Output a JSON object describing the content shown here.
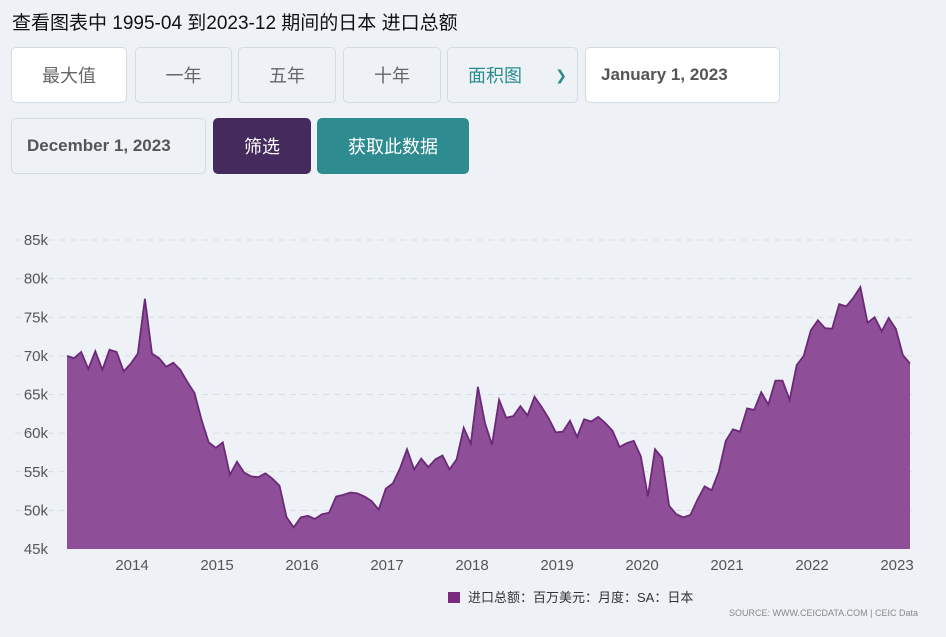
{
  "title": "查看图表中 1995-04 到2023-12 期间的日本 进口总额",
  "controls": {
    "max": "最大值",
    "one_year": "一年",
    "five_year": "五年",
    "ten_year": "十年",
    "chart_type": "面积图",
    "start_date": "January 1, 2023",
    "end_date": "December 1, 2023",
    "filter": "筛选",
    "get_data": "获取此数据"
  },
  "legend": "进口总额：百万美元：月度：SA：日本",
  "source": "SOURCE: WWW.CEICDATA.COM | CEIC Data",
  "colors": {
    "area": "#8e4e98",
    "line": "#6a2a78",
    "legend": "#7b2a82"
  },
  "chart_data": {
    "type": "area",
    "ylim": [
      45,
      85
    ],
    "y_ticks": [
      "45k",
      "50k",
      "55k",
      "60k",
      "65k",
      "70k",
      "75k",
      "80k",
      "85k"
    ],
    "y_tick_values": [
      45,
      50,
      55,
      60,
      65,
      70,
      75,
      80,
      85
    ],
    "x_ticks": [
      "2014",
      "2015",
      "2016",
      "2017",
      "2018",
      "2019",
      "2020",
      "2021",
      "2022",
      "2023"
    ],
    "x_tick_values": [
      2014,
      2015,
      2016,
      2017,
      2018,
      2019,
      2020,
      2021,
      2022,
      2023
    ],
    "x_start": 2013.25,
    "x_step_months": 1,
    "series": [
      {
        "name": "进口总额：百万美元：月度：SA：日本",
        "values": [
          70.0,
          69.7,
          70.5,
          68.3,
          70.6,
          68.2,
          70.8,
          70.5,
          68.0,
          69.0,
          70.3,
          77.4,
          70.3,
          69.7,
          68.6,
          69.1,
          68.2,
          66.6,
          65.2,
          61.7,
          58.8,
          58.1,
          58.8,
          54.6,
          56.3,
          54.9,
          54.4,
          54.3,
          54.8,
          54.1,
          53.2,
          49.1,
          47.8,
          49.1,
          49.3,
          48.9,
          49.5,
          49.7,
          51.8,
          52.0,
          52.3,
          52.2,
          51.8,
          51.2,
          50.1,
          52.8,
          53.5,
          55.4,
          57.9,
          55.3,
          56.7,
          55.6,
          56.6,
          57.1,
          55.3,
          56.6,
          60.7,
          58.6,
          66.0,
          61.3,
          58.5,
          64.3,
          62.0,
          62.2,
          63.5,
          62.3,
          64.7,
          63.4,
          61.9,
          60.1,
          60.2,
          61.6,
          59.5,
          61.8,
          61.5,
          62.1,
          61.3,
          60.3,
          58.2,
          58.7,
          59.0,
          57.0,
          51.8,
          57.9,
          56.8,
          50.6,
          49.5,
          49.1,
          49.4,
          51.4,
          53.1,
          52.6,
          55.0,
          59.0,
          60.5,
          60.2,
          63.2,
          63.0,
          65.3,
          63.7,
          66.8,
          66.8,
          64.3,
          68.8,
          70.0,
          73.3,
          74.6,
          73.6,
          73.5,
          76.7,
          76.4,
          77.5,
          78.9,
          74.3,
          75.0,
          73.2,
          74.9,
          73.5,
          70.1,
          69.0
        ]
      }
    ]
  }
}
